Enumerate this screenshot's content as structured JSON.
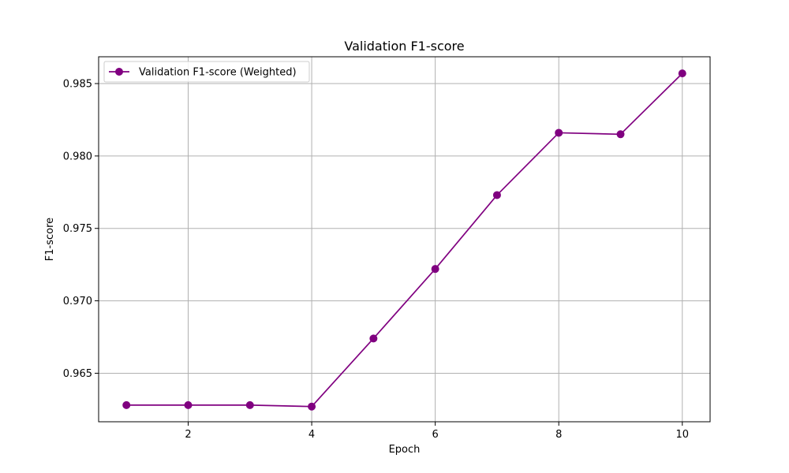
{
  "chart_data": {
    "type": "line",
    "title": "Validation F1-score",
    "xlabel": "Epoch",
    "ylabel": "F1-score",
    "xlim": [
      0.55,
      10.45
    ],
    "ylim": [
      0.96165,
      0.98685
    ],
    "xticks": [
      2,
      4,
      6,
      8,
      10
    ],
    "xtick_labels": [
      "2",
      "4",
      "6",
      "8",
      "10"
    ],
    "yticks": [
      0.965,
      0.97,
      0.975,
      0.98,
      0.985
    ],
    "ytick_labels": [
      "0.965",
      "0.970",
      "0.975",
      "0.980",
      "0.985"
    ],
    "grid": true,
    "legend_position": "top-left",
    "x": [
      1,
      2,
      3,
      4,
      5,
      6,
      7,
      8,
      9,
      10
    ],
    "series": [
      {
        "name": "Validation F1-score (Weighted)",
        "color": "#800080",
        "marker": "circle",
        "values": [
          0.9628,
          0.9628,
          0.9628,
          0.9627,
          0.9674,
          0.9722,
          0.9773,
          0.9816,
          0.9815,
          0.9857
        ]
      }
    ]
  }
}
